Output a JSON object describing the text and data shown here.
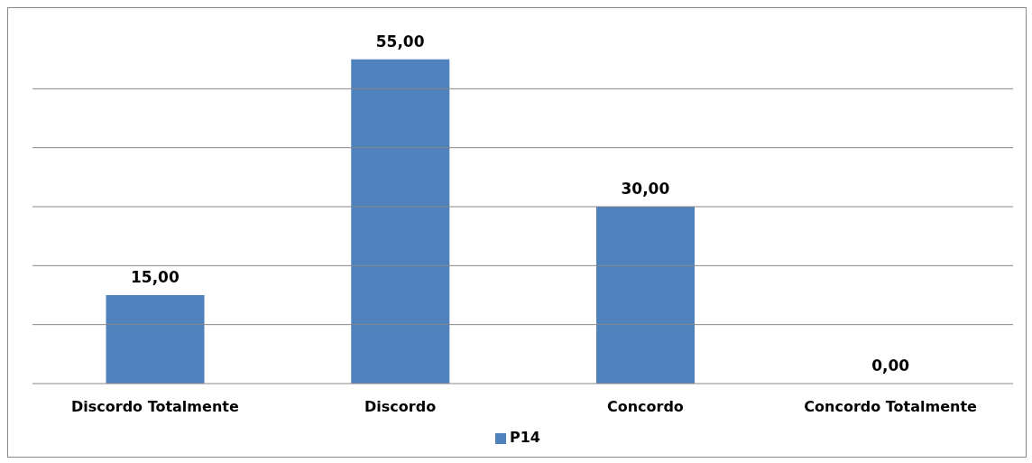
{
  "chart_data": {
    "type": "bar",
    "categories": [
      "Discordo Totalmente",
      "Discordo",
      "Concordo",
      "Concordo Totalmente"
    ],
    "series": [
      {
        "name": "P14",
        "color": "#4f81bd",
        "values": [
          15,
          55,
          30,
          0
        ],
        "value_labels": [
          "15,00",
          "55,00",
          "30,00",
          "0,00"
        ]
      }
    ],
    "yticks": [
      {
        "value": 0,
        "label": null
      },
      {
        "value": 10,
        "label": null
      },
      {
        "value": 20,
        "label": null
      },
      {
        "value": 30,
        "label": null
      },
      {
        "value": 40,
        "label": null
      },
      {
        "value": 50,
        "label": null
      }
    ],
    "grid": "y",
    "legend": "bottom",
    "tick_labels": "x"
  }
}
